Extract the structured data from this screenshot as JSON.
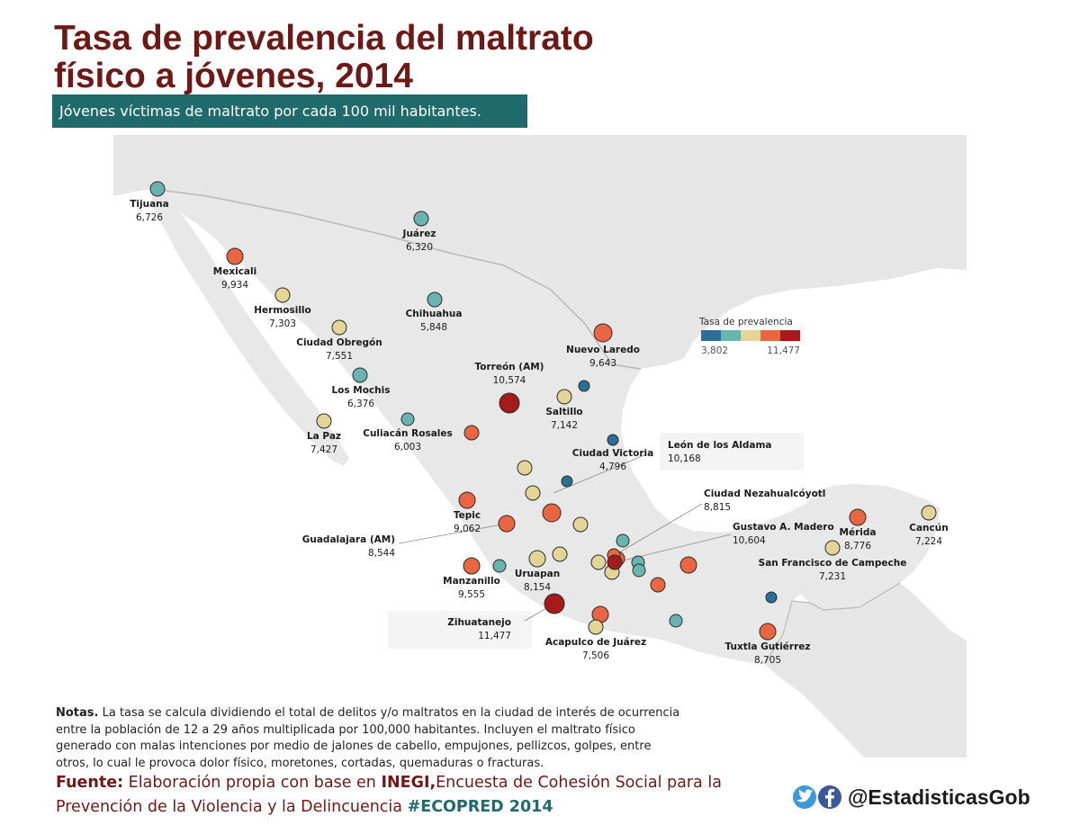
{
  "title_line1": "Tasa de prevalencia del maltrato",
  "title_line2": "físico a jóvenes, 2014",
  "subtitle": "Jóvenes víctimas de maltrato por cada 100 mil habitantes.",
  "legend": {
    "title": "Tasa de prevalencia",
    "min": "3,802",
    "max": "11,477",
    "colors": [
      "#2b6f95",
      "#6ab4b0",
      "#e3d598",
      "#ea6542",
      "#a51b1b"
    ]
  },
  "cities": [
    {
      "name": "Tijuana",
      "value": "6,726",
      "color": "#6ab4b0"
    },
    {
      "name": "Juárez",
      "value": "6,320",
      "color": "#6ab4b0"
    },
    {
      "name": "Mexicali",
      "value": "9,934",
      "color": "#ea6542"
    },
    {
      "name": "Hermosillo",
      "value": "7,303",
      "color": "#e3d598"
    },
    {
      "name": "Chihuahua",
      "value": "5,848",
      "color": "#6ab4b0"
    },
    {
      "name": "Ciudad Obregón",
      "value": "7,551",
      "color": "#e3d598"
    },
    {
      "name": "Nuevo Laredo",
      "value": "9,643",
      "color": "#ea6542"
    },
    {
      "name": "Los Mochis",
      "value": "6,376",
      "color": "#6ab4b0"
    },
    {
      "name": "Torreón (AM)",
      "value": "10,574",
      "color": "#a51b1b"
    },
    {
      "name": "Saltillo",
      "value": "7,142",
      "color": "#e3d598"
    },
    {
      "name": "La Paz",
      "value": "7,427",
      "color": "#e3d598"
    },
    {
      "name": "Culiacán Rosales",
      "value": "6,003",
      "color": "#6ab4b0"
    },
    {
      "name": "Ciudad Victoria",
      "value": "4,796",
      "color": "#2b6f95"
    },
    {
      "name": "León de los Aldama",
      "value": "10,168",
      "color": "#ea6542"
    },
    {
      "name": "Tepic",
      "value": "9,062",
      "color": "#ea6542"
    },
    {
      "name": "Guadalajara (AM)",
      "value": "8,544",
      "color": "#ea6542"
    },
    {
      "name": "Ciudad Nezahualcóyotl",
      "value": "8,815",
      "color": "#ea6542"
    },
    {
      "name": "Gustavo A. Madero",
      "value": "10,604",
      "color": "#a51b1b"
    },
    {
      "name": "Mérida",
      "value": "8,776",
      "color": "#ea6542"
    },
    {
      "name": "Cancún",
      "value": "7,224",
      "color": "#e3d598"
    },
    {
      "name": "San Francisco de Campeche",
      "value": "7,231",
      "color": "#e3d598"
    },
    {
      "name": "Manzanillo",
      "value": "9,555",
      "color": "#ea6542"
    },
    {
      "name": "Uruapan",
      "value": "8,154",
      "color": "#e3d598"
    },
    {
      "name": "Zihuatanejo",
      "value": "11,477",
      "color": "#a51b1b"
    },
    {
      "name": "Acapulco de Juárez",
      "value": "7,506",
      "color": "#e3d598"
    },
    {
      "name": "Tuxtla Gutiérrez",
      "value": "8,705",
      "color": "#ea6542"
    }
  ],
  "unlabeled_marker_colors": [
    "#2b6f95",
    "#2b6f95",
    "#e3d598",
    "#e3d598",
    "#e3d598",
    "#6ab4b0",
    "#e3d598",
    "#e3d598",
    "#e3d598",
    "#6ab4b0",
    "#6ab4b0",
    "#ea6542",
    "#ea6542",
    "#6ab4b0",
    "#ea6542",
    "#ea6542",
    "#2b6f95",
    "#6ab4b0",
    "#ea6542"
  ],
  "notes": {
    "label": "Notas.",
    "text": " La tasa se calcula dividiendo el total de delitos y/o maltratos en la ciudad de interés de ocurrencia entre la población de 12 a 29 años multiplicada por 100,000 habitantes. Incluyen el maltrato físico generado con malas intenciones por medio de jalones de cabello, empujones, pellizcos, golpes, entre otros, lo cual le provoca dolor físico, moretones, cortadas, quemaduras o fracturas."
  },
  "source": {
    "label": "Fuente:",
    "text1": " Elaboración propia con base en ",
    "inegi": "INEGI,",
    "text2": "Encuesta de Cohesión Social para la Prevención de la Violencia y la Delincuencia ",
    "hashtag": "#ECOPRED 2014"
  },
  "social": {
    "handle": "@EstadisticasGob",
    "icons": [
      "twitter-icon",
      "facebook-icon"
    ],
    "colors": {
      "twitter": "#3b9ad9",
      "facebook": "#3b5998"
    }
  }
}
